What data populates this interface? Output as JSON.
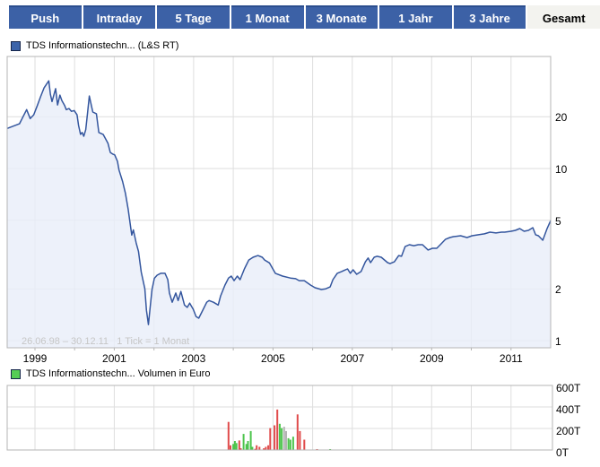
{
  "toolbar": {
    "active_index": 7,
    "buttons": [
      {
        "id": "push",
        "label": "Push"
      },
      {
        "id": "intraday",
        "label": "Intraday"
      },
      {
        "id": "5-tage",
        "label": "5 Tage"
      },
      {
        "id": "1-monat",
        "label": "1 Monat"
      },
      {
        "id": "3-monate",
        "label": "3 Monate"
      },
      {
        "id": "1-jahr",
        "label": "1 Jahr"
      },
      {
        "id": "3-jahre",
        "label": "3 Jahre"
      },
      {
        "id": "gesamt",
        "label": "Gesamt"
      }
    ]
  },
  "colors": {
    "button_blue": "#3c61a6",
    "button_blue_top": "#2b4e8e",
    "button_active_bg": "#f3f3ef",
    "line": "#34569e",
    "area_fill": "#e8edf9",
    "grid": "#dedede",
    "frame": "#b5b5b5",
    "axis_text": "#000000",
    "watermark_text": "#c6c6c6",
    "legend_price_swatch": "#3c64aa",
    "legend_volume_swatch": "#55cd55",
    "bar_red": "#e04b4b",
    "bar_green": "#4dc44d",
    "bar_gray": "#b3b3b3"
  },
  "chart_data": [
    {
      "type": "line",
      "title": "TDS Informationstechn... (L&S RT)",
      "watermark": "26.06.98 – 30.12.11   1 Tick = 1 Monat",
      "y_scale": "log",
      "x_range": [
        1998.3,
        2012.0
      ],
      "y_range": [
        0.9,
        35
      ],
      "y_ticks": [
        1,
        2,
        5,
        10,
        20
      ],
      "x_tick_labels": [
        1999,
        2001,
        2003,
        2005,
        2007,
        2009,
        2011
      ],
      "grid": true,
      "legend_position": "top-left",
      "points": [
        [
          1998.3,
          17.1
        ],
        [
          1998.61,
          18.2
        ],
        [
          1998.7,
          20.0
        ],
        [
          1998.79,
          22.0
        ],
        [
          1998.88,
          19.5
        ],
        [
          1998.97,
          20.5
        ],
        [
          1999.06,
          23.2
        ],
        [
          1999.14,
          26.1
        ],
        [
          1999.23,
          29.4
        ],
        [
          1999.35,
          32.3
        ],
        [
          1999.39,
          27.0
        ],
        [
          1999.43,
          24.5
        ],
        [
          1999.52,
          29.1
        ],
        [
          1999.57,
          23.4
        ],
        [
          1999.63,
          26.7
        ],
        [
          1999.68,
          24.8
        ],
        [
          1999.75,
          23.2
        ],
        [
          1999.79,
          22.0
        ],
        [
          1999.86,
          22.3
        ],
        [
          1999.92,
          21.5
        ],
        [
          1999.99,
          21.7
        ],
        [
          2000.06,
          20.5
        ],
        [
          2000.1,
          17.8
        ],
        [
          2000.15,
          15.8
        ],
        [
          2000.19,
          16.2
        ],
        [
          2000.23,
          15.4
        ],
        [
          2000.28,
          16.8
        ],
        [
          2000.32,
          20.5
        ],
        [
          2000.37,
          26.4
        ],
        [
          2000.41,
          24.0
        ],
        [
          2000.46,
          21.3
        ],
        [
          2000.55,
          20.8
        ],
        [
          2000.61,
          16.2
        ],
        [
          2000.72,
          15.8
        ],
        [
          2000.84,
          14.0
        ],
        [
          2000.9,
          12.4
        ],
        [
          2000.97,
          12.1
        ],
        [
          2001.01,
          12.0
        ],
        [
          2001.08,
          11.0
        ],
        [
          2001.12,
          9.8
        ],
        [
          2001.21,
          8.4
        ],
        [
          2001.28,
          7.2
        ],
        [
          2001.35,
          5.8
        ],
        [
          2001.44,
          4.1
        ],
        [
          2001.48,
          4.4
        ],
        [
          2001.55,
          3.7
        ],
        [
          2001.61,
          3.3
        ],
        [
          2001.68,
          2.5
        ],
        [
          2001.77,
          2.0
        ],
        [
          2001.81,
          1.5
        ],
        [
          2001.86,
          1.24
        ],
        [
          2001.9,
          1.52
        ],
        [
          2001.95,
          1.98
        ],
        [
          2002.01,
          2.3
        ],
        [
          2002.08,
          2.4
        ],
        [
          2002.17,
          2.46
        ],
        [
          2002.28,
          2.46
        ],
        [
          2002.35,
          2.26
        ],
        [
          2002.39,
          1.89
        ],
        [
          2002.46,
          1.67
        ],
        [
          2002.55,
          1.89
        ],
        [
          2002.61,
          1.71
        ],
        [
          2002.68,
          1.93
        ],
        [
          2002.77,
          1.61
        ],
        [
          2002.84,
          1.56
        ],
        [
          2002.9,
          1.65
        ],
        [
          2002.99,
          1.52
        ],
        [
          2003.06,
          1.38
        ],
        [
          2003.13,
          1.35
        ],
        [
          2003.21,
          1.47
        ],
        [
          2003.33,
          1.67
        ],
        [
          2003.39,
          1.71
        ],
        [
          2003.5,
          1.67
        ],
        [
          2003.62,
          1.61
        ],
        [
          2003.68,
          1.82
        ],
        [
          2003.79,
          2.1
        ],
        [
          2003.88,
          2.31
        ],
        [
          2003.95,
          2.37
        ],
        [
          2004.02,
          2.23
        ],
        [
          2004.1,
          2.37
        ],
        [
          2004.17,
          2.26
        ],
        [
          2004.28,
          2.61
        ],
        [
          2004.39,
          2.94
        ],
        [
          2004.5,
          3.05
        ],
        [
          2004.62,
          3.12
        ],
        [
          2004.73,
          3.05
        ],
        [
          2004.79,
          2.94
        ],
        [
          2004.91,
          2.83
        ],
        [
          2005.06,
          2.46
        ],
        [
          2005.24,
          2.37
        ],
        [
          2005.44,
          2.31
        ],
        [
          2005.57,
          2.29
        ],
        [
          2005.66,
          2.23
        ],
        [
          2005.79,
          2.23
        ],
        [
          2005.95,
          2.1
        ],
        [
          2006.06,
          2.03
        ],
        [
          2006.22,
          1.98
        ],
        [
          2006.33,
          2.0
        ],
        [
          2006.44,
          2.05
        ],
        [
          2006.51,
          2.26
        ],
        [
          2006.62,
          2.46
        ],
        [
          2006.73,
          2.52
        ],
        [
          2006.88,
          2.61
        ],
        [
          2006.95,
          2.46
        ],
        [
          2007.02,
          2.58
        ],
        [
          2007.11,
          2.43
        ],
        [
          2007.22,
          2.52
        ],
        [
          2007.33,
          2.87
        ],
        [
          2007.4,
          3.02
        ],
        [
          2007.46,
          2.84
        ],
        [
          2007.55,
          3.05
        ],
        [
          2007.62,
          3.09
        ],
        [
          2007.73,
          3.05
        ],
        [
          2007.89,
          2.84
        ],
        [
          2007.95,
          2.8
        ],
        [
          2008.06,
          2.87
        ],
        [
          2008.17,
          3.12
        ],
        [
          2008.24,
          3.09
        ],
        [
          2008.33,
          3.52
        ],
        [
          2008.44,
          3.61
        ],
        [
          2008.55,
          3.56
        ],
        [
          2008.66,
          3.61
        ],
        [
          2008.77,
          3.61
        ],
        [
          2008.91,
          3.36
        ],
        [
          2009.02,
          3.44
        ],
        [
          2009.13,
          3.44
        ],
        [
          2009.24,
          3.65
        ],
        [
          2009.35,
          3.88
        ],
        [
          2009.46,
          3.97
        ],
        [
          2009.55,
          4.02
        ],
        [
          2009.73,
          4.07
        ],
        [
          2009.89,
          3.97
        ],
        [
          2010.02,
          4.07
        ],
        [
          2010.18,
          4.12
        ],
        [
          2010.33,
          4.17
        ],
        [
          2010.47,
          4.27
        ],
        [
          2010.62,
          4.22
        ],
        [
          2010.76,
          4.27
        ],
        [
          2010.84,
          4.27
        ],
        [
          2011.0,
          4.32
        ],
        [
          2011.11,
          4.37
        ],
        [
          2011.22,
          4.48
        ],
        [
          2011.33,
          4.32
        ],
        [
          2011.44,
          4.37
        ],
        [
          2011.55,
          4.53
        ],
        [
          2011.62,
          4.12
        ],
        [
          2011.69,
          4.07
        ],
        [
          2011.8,
          3.83
        ],
        [
          2011.91,
          4.48
        ],
        [
          2012.0,
          4.98
        ]
      ]
    },
    {
      "type": "bar",
      "title": "TDS Informationstechn... Volumen in Euro",
      "x_range": [
        1998.3,
        2012.0
      ],
      "y_range_thousевроп": null,
      "y_ticks": [
        {
          "v": 600,
          "label": "600T"
        },
        {
          "v": 400,
          "label": "400T"
        },
        {
          "v": 200,
          "label": "200T"
        },
        {
          "v": 0,
          "label": "0T"
        }
      ],
      "grid": true,
      "bars": [
        {
          "x": 2003.88,
          "v": 261,
          "c": "red"
        },
        {
          "x": 2003.93,
          "v": 43,
          "c": "red"
        },
        {
          "x": 2004.0,
          "v": 56,
          "c": "green"
        },
        {
          "x": 2004.04,
          "v": 83,
          "c": "green"
        },
        {
          "x": 2004.08,
          "v": 64,
          "c": "green"
        },
        {
          "x": 2004.15,
          "v": 88,
          "c": "red"
        },
        {
          "x": 2004.19,
          "v": 16,
          "c": "red"
        },
        {
          "x": 2004.26,
          "v": 149,
          "c": "green"
        },
        {
          "x": 2004.33,
          "v": 56,
          "c": "green"
        },
        {
          "x": 2004.37,
          "v": 83,
          "c": "green"
        },
        {
          "x": 2004.44,
          "v": 176,
          "c": "green"
        },
        {
          "x": 2004.48,
          "v": 29,
          "c": "green"
        },
        {
          "x": 2004.55,
          "v": 11,
          "c": "red"
        },
        {
          "x": 2004.59,
          "v": 43,
          "c": "red"
        },
        {
          "x": 2004.66,
          "v": 29,
          "c": "red"
        },
        {
          "x": 2004.77,
          "v": 16,
          "c": "red"
        },
        {
          "x": 2004.82,
          "v": 29,
          "c": "red"
        },
        {
          "x": 2004.88,
          "v": 43,
          "c": "red"
        },
        {
          "x": 2004.93,
          "v": 203,
          "c": "red"
        },
        {
          "x": 2005.04,
          "v": 229,
          "c": "red"
        },
        {
          "x": 2005.11,
          "v": 376,
          "c": "red"
        },
        {
          "x": 2005.17,
          "v": 243,
          "c": "green"
        },
        {
          "x": 2005.22,
          "v": 203,
          "c": "green"
        },
        {
          "x": 2005.28,
          "v": 216,
          "c": "gray"
        },
        {
          "x": 2005.33,
          "v": 176,
          "c": "gray"
        },
        {
          "x": 2005.39,
          "v": 109,
          "c": "green"
        },
        {
          "x": 2005.44,
          "v": 96,
          "c": "green"
        },
        {
          "x": 2005.51,
          "v": 123,
          "c": "green"
        },
        {
          "x": 2005.62,
          "v": 331,
          "c": "red"
        },
        {
          "x": 2005.68,
          "v": 176,
          "c": "red"
        },
        {
          "x": 2005.79,
          "v": 96,
          "c": "red"
        },
        {
          "x": 2006.11,
          "v": 8,
          "c": "red"
        },
        {
          "x": 2006.44,
          "v": 8,
          "c": "green"
        }
      ]
    }
  ]
}
